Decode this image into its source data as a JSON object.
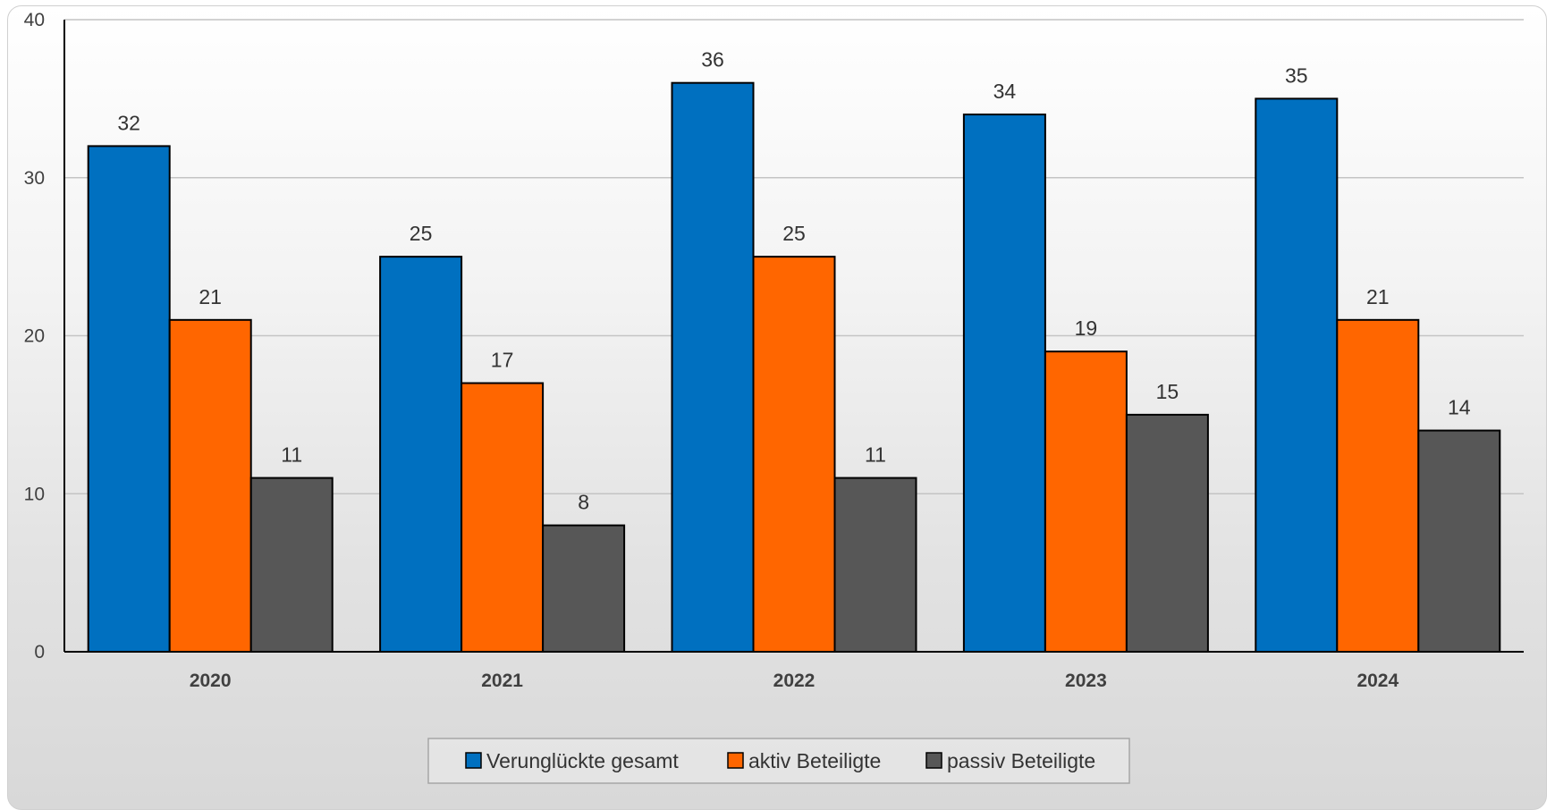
{
  "chart_data": {
    "type": "bar",
    "categories": [
      "2020",
      "2021",
      "2022",
      "2023",
      "2024"
    ],
    "series": [
      {
        "name": "Verunglückte gesamt",
        "color": "#0070C0",
        "values": [
          32,
          25,
          36,
          34,
          35
        ]
      },
      {
        "name": "aktiv Beteiligte",
        "color": "#FF6600",
        "values": [
          21,
          17,
          25,
          19,
          21
        ]
      },
      {
        "name": "passiv Beteiligte",
        "color": "#575757",
        "values": [
          11,
          8,
          11,
          15,
          14
        ]
      }
    ],
    "yticks": [
      "0",
      "10",
      "20",
      "30",
      "40"
    ],
    "ylim": [
      0,
      40
    ],
    "grid": true,
    "legend_position": "bottom"
  }
}
